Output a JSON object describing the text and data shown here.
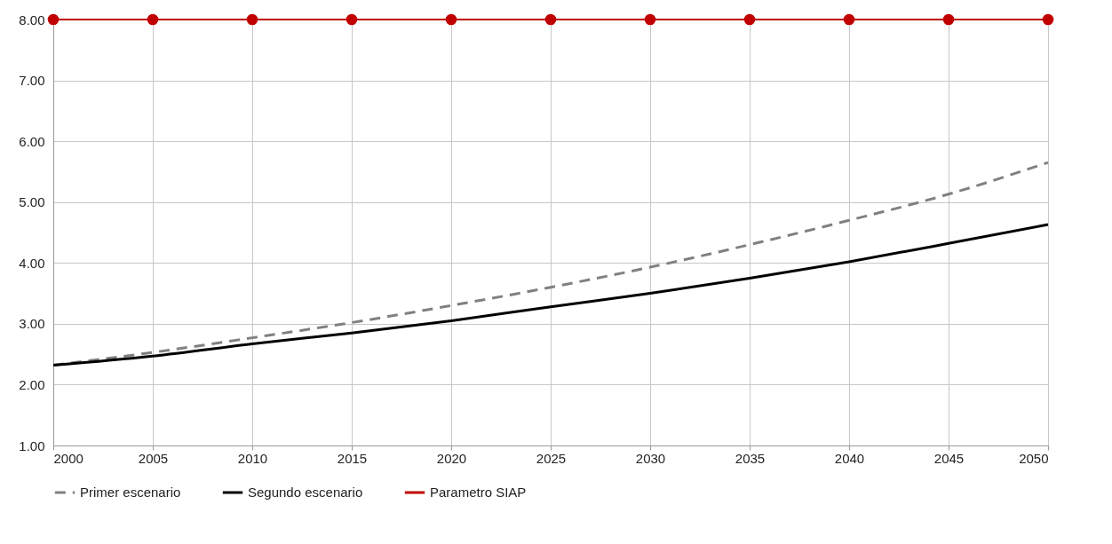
{
  "chart_data": {
    "type": "line",
    "x": [
      2000,
      2005,
      2010,
      2015,
      2020,
      2025,
      2030,
      2035,
      2040,
      2045,
      2050
    ],
    "series": [
      {
        "name": "Primer escenario",
        "color": "#808080",
        "line_style": "dashed",
        "marker": "none",
        "values": [
          2.32,
          2.53,
          2.77,
          3.02,
          3.3,
          3.6,
          3.93,
          4.3,
          4.7,
          5.13,
          5.65
        ]
      },
      {
        "name": "Segundo escenario",
        "color": "#000000",
        "line_style": "solid",
        "marker": "none",
        "values": [
          2.32,
          2.47,
          2.67,
          2.85,
          3.05,
          3.28,
          3.5,
          3.75,
          4.02,
          4.32,
          4.63
        ]
      },
      {
        "name": "Parametro SIAP",
        "color": "#c00000",
        "line_style": "solid",
        "marker": "circle",
        "values": [
          8,
          8,
          8,
          8,
          8,
          8,
          8,
          8,
          8,
          8,
          8
        ]
      }
    ],
    "xlim": [
      2000,
      2050
    ],
    "xticks": [
      2000,
      2005,
      2010,
      2015,
      2020,
      2025,
      2030,
      2035,
      2040,
      2045,
      2050
    ],
    "ylim": [
      1,
      8
    ],
    "yticks": [
      {
        "value": 1,
        "label": "1.00"
      },
      {
        "value": 2,
        "label": "2.00"
      },
      {
        "value": 3,
        "label": "3.00"
      },
      {
        "value": 4,
        "label": "4.00"
      },
      {
        "value": 5,
        "label": "5.00"
      },
      {
        "value": 6,
        "label": "6.00"
      },
      {
        "value": 7,
        "label": "7.00"
      },
      {
        "value": 8,
        "label": "8.00"
      }
    ],
    "grid": true,
    "legend": "bottom"
  }
}
